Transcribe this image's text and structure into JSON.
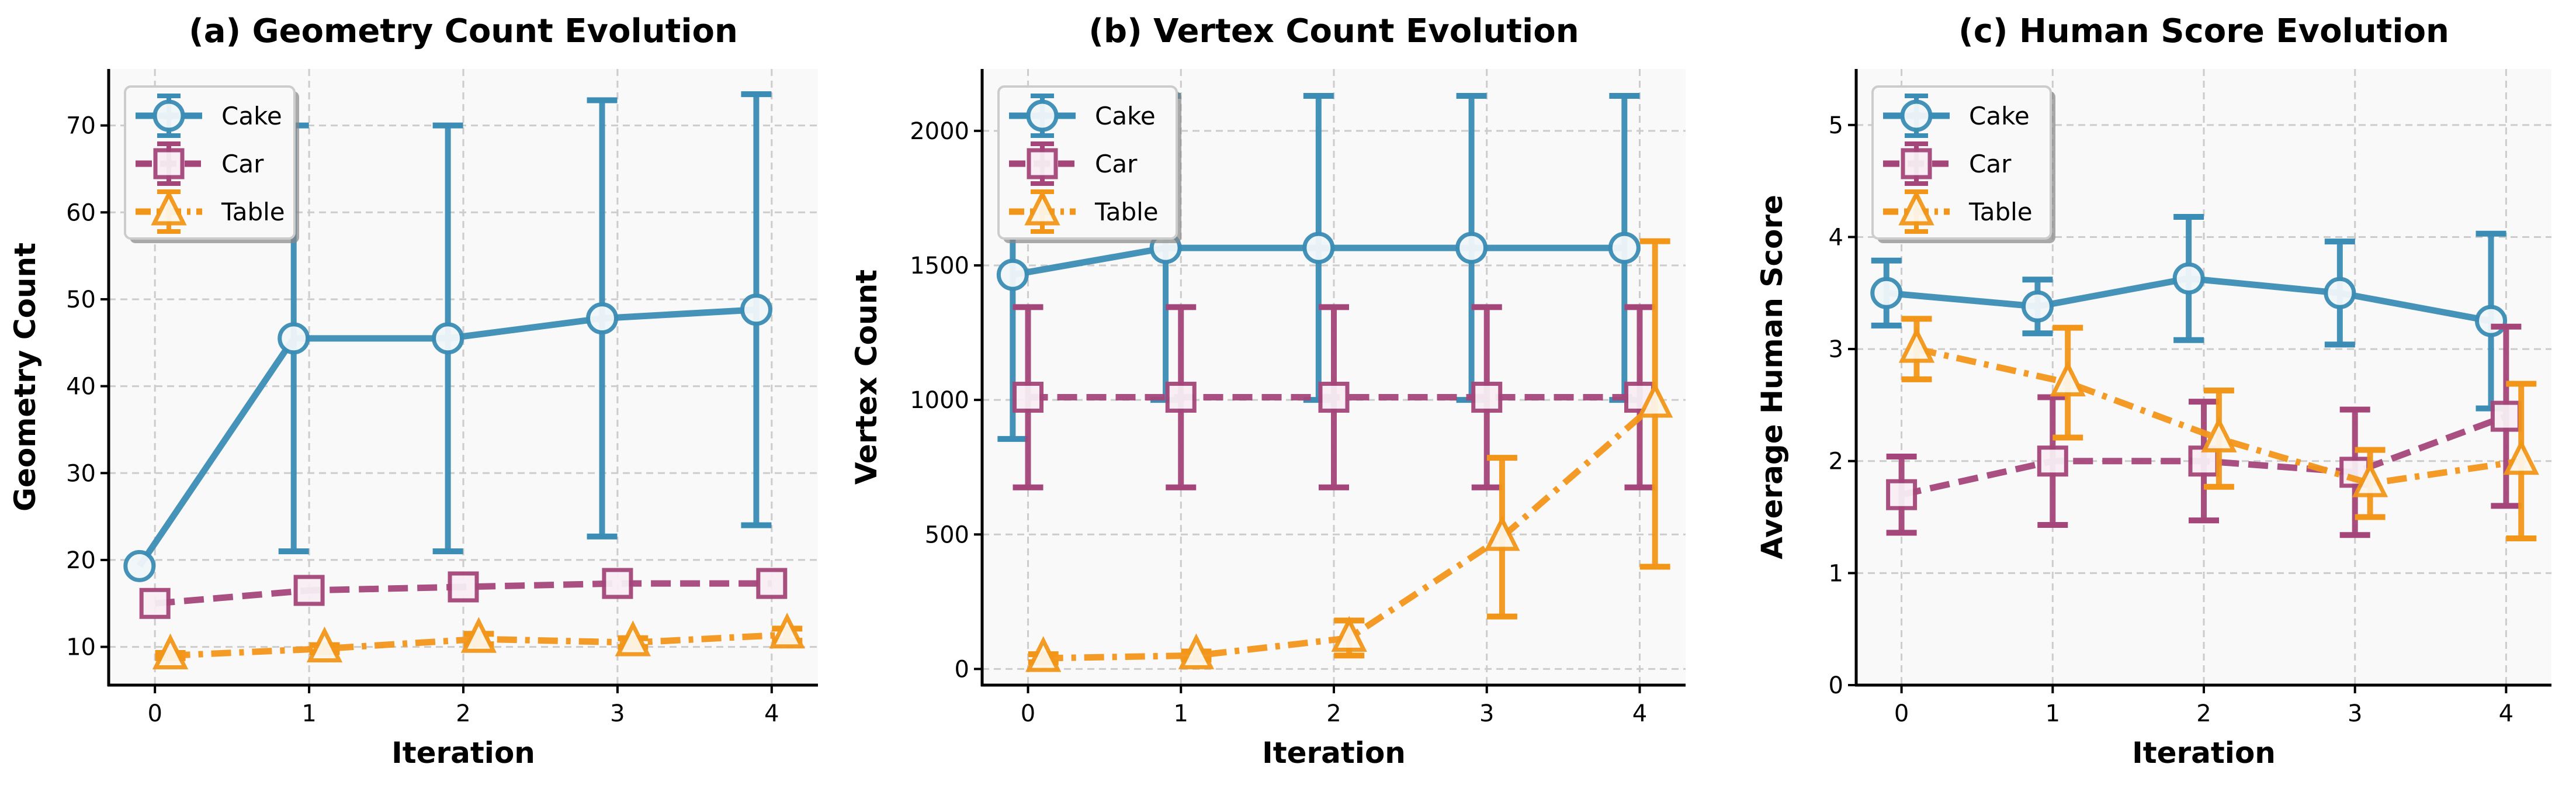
{
  "chart_data": [
    {
      "type": "line",
      "title": "(a) Geometry Count Evolution",
      "xlabel": "Iteration",
      "ylabel": "Geometry Count",
      "x": [
        0,
        1,
        2,
        3,
        4
      ],
      "xticks": [
        "0",
        "1",
        "2",
        "3",
        "4"
      ],
      "yticks": [
        10,
        20,
        30,
        40,
        50,
        60,
        70
      ],
      "ylim": [
        5.6,
        76.5
      ],
      "xlim": [
        -0.3,
        4.3
      ],
      "grid": true,
      "legend": "top-left",
      "series": [
        {
          "name": "Cake",
          "marker": "circle",
          "linestyle": "solid",
          "color": "#3c8db5",
          "values": [
            19.3,
            45.5,
            45.5,
            47.8,
            48.8
          ],
          "errors": [
            0,
            24.5,
            24.5,
            25.1,
            24.8
          ]
        },
        {
          "name": "Car",
          "marker": "square",
          "linestyle": "dashed",
          "color": "#a4467a",
          "values": [
            15.0,
            16.5,
            16.9,
            17.3,
            17.3
          ],
          "errors": [
            0,
            0,
            0,
            0,
            0
          ]
        },
        {
          "name": "Table",
          "marker": "triangle",
          "linestyle": "dashdot",
          "color": "#f2961a",
          "values": [
            9.0,
            9.8,
            10.9,
            10.5,
            11.4
          ],
          "errors": [
            0.3,
            0.4,
            0.6,
            0.5,
            0.7
          ]
        }
      ]
    },
    {
      "type": "line",
      "title": "(b) Vertex Count Evolution",
      "xlabel": "Iteration",
      "ylabel": "Vertex Count",
      "x": [
        0,
        1,
        2,
        3,
        4
      ],
      "xticks": [
        "0",
        "1",
        "2",
        "3",
        "4"
      ],
      "yticks": [
        0,
        500,
        1000,
        1500,
        2000
      ],
      "ylim": [
        -60,
        2230
      ],
      "xlim": [
        -0.3,
        4.3
      ],
      "grid": true,
      "legend": "top-left",
      "series": [
        {
          "name": "Cake",
          "marker": "circle",
          "linestyle": "solid",
          "color": "#3c8db5",
          "values": [
            1465,
            1565,
            1565,
            1565,
            1565
          ],
          "errors": [
            610,
            565,
            565,
            565,
            565
          ]
        },
        {
          "name": "Car",
          "marker": "square",
          "linestyle": "dashed",
          "color": "#a4467a",
          "values": [
            1010,
            1010,
            1010,
            1010,
            1010
          ],
          "errors": [
            335,
            335,
            335,
            335,
            335
          ]
        },
        {
          "name": "Table",
          "marker": "triangle",
          "linestyle": "dashdot",
          "color": "#f2961a",
          "values": [
            40,
            50,
            115,
            490,
            985
          ],
          "errors": [
            15,
            15,
            65,
            295,
            605
          ]
        }
      ]
    },
    {
      "type": "line",
      "title": "(c) Human Score Evolution",
      "xlabel": "Iteration",
      "ylabel": "Average Human Score",
      "x": [
        0,
        1,
        2,
        3,
        4
      ],
      "xticks": [
        "0",
        "1",
        "2",
        "3",
        "4"
      ],
      "yticks": [
        0,
        1,
        2,
        3,
        4,
        5
      ],
      "ylim": [
        0,
        5.5
      ],
      "xlim": [
        -0.3,
        4.3
      ],
      "grid": true,
      "legend": "top-left",
      "series": [
        {
          "name": "Cake",
          "marker": "circle",
          "linestyle": "solid",
          "color": "#3c8db5",
          "values": [
            3.5,
            3.38,
            3.63,
            3.5,
            3.25
          ],
          "errors": [
            0.29,
            0.24,
            0.55,
            0.46,
            0.78
          ]
        },
        {
          "name": "Car",
          "marker": "square",
          "linestyle": "dashed",
          "color": "#a4467a",
          "values": [
            1.7,
            2.0,
            2.0,
            1.9,
            2.4
          ],
          "errors": [
            0.34,
            0.57,
            0.53,
            0.56,
            0.8
          ]
        },
        {
          "name": "Table",
          "marker": "triangle",
          "linestyle": "dashdot",
          "color": "#f2961a",
          "values": [
            3.0,
            2.7,
            2.2,
            1.8,
            2.0
          ],
          "errors": [
            0.27,
            0.49,
            0.43,
            0.3,
            0.69
          ]
        }
      ]
    }
  ]
}
